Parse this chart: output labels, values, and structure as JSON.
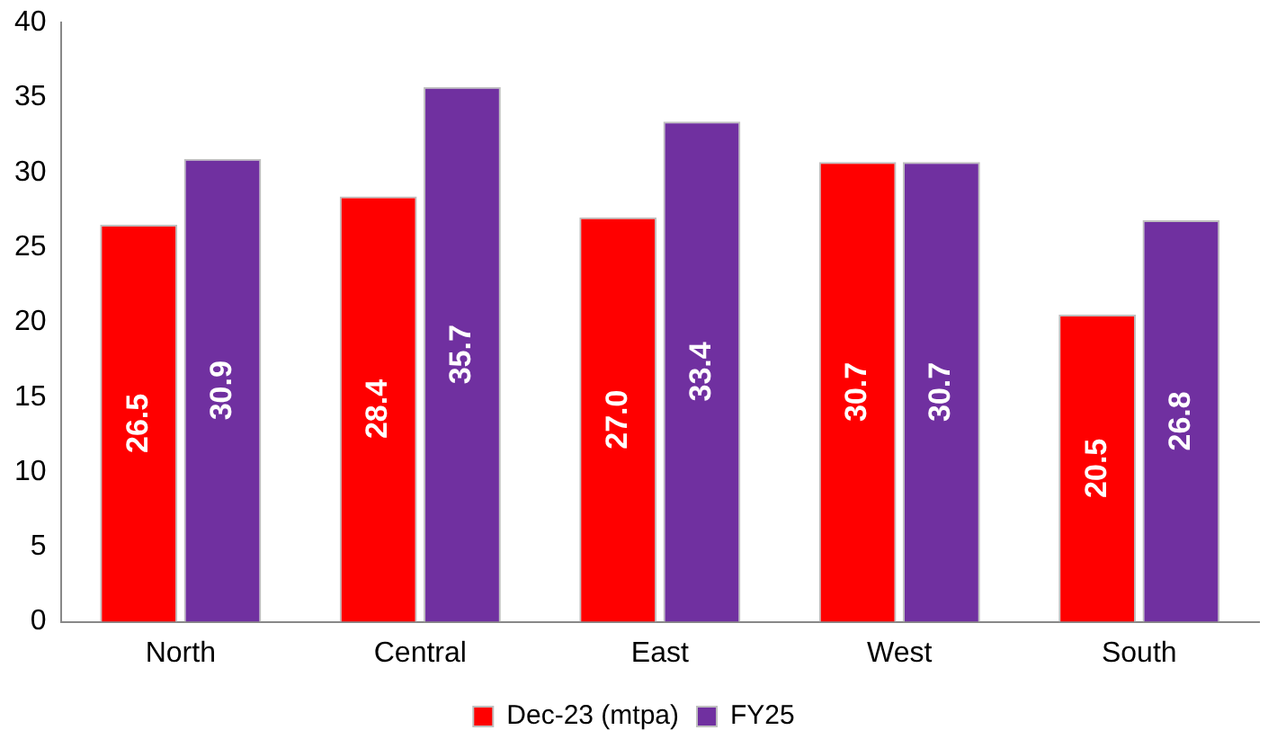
{
  "chart_data": {
    "type": "bar",
    "categories": [
      "North",
      "Central",
      "East",
      "West",
      "South"
    ],
    "series": [
      {
        "name": "Dec-23 (mtpa)",
        "color": "#ff0000",
        "values": [
          26.5,
          28.4,
          27.0,
          30.7,
          20.5
        ],
        "value_labels": [
          "26.5",
          "28.4",
          "27.0",
          "30.7",
          "20.5"
        ]
      },
      {
        "name": "FY25",
        "color": "#7030a0",
        "values": [
          30.9,
          35.7,
          33.4,
          30.7,
          26.8
        ],
        "value_labels": [
          "30.9",
          "35.7",
          "33.4",
          "30.7",
          "26.8"
        ]
      }
    ],
    "ylim": [
      0,
      40
    ],
    "yticks": [
      0,
      5,
      10,
      15,
      20,
      25,
      30,
      35,
      40
    ],
    "grid": false,
    "legend": "bottom"
  }
}
